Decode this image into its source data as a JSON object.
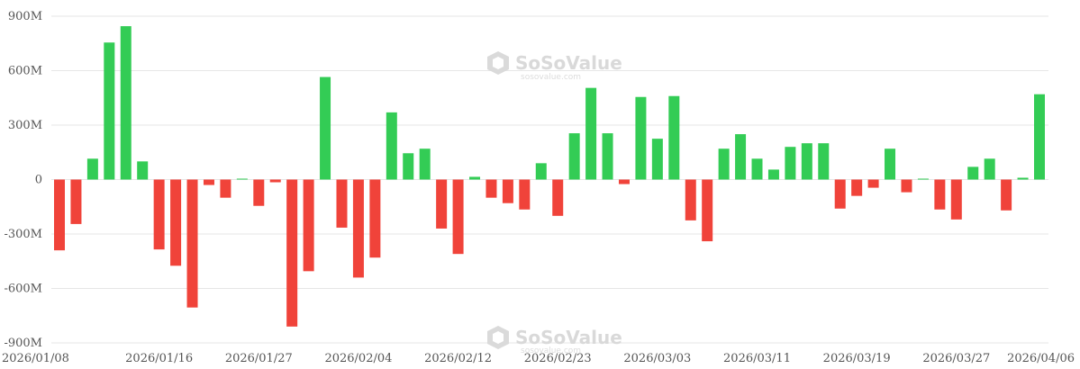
{
  "watermark": {
    "name": "SoSoValue",
    "url": "sosovalue.com"
  },
  "colors": {
    "positive": "#33cc55",
    "negative": "#f0433a"
  },
  "chart_data": {
    "type": "bar",
    "ylim": [
      -900,
      900
    ],
    "yunit": "M",
    "yticks": [
      {
        "value": 900,
        "label": "900M"
      },
      {
        "value": 600,
        "label": "600M"
      },
      {
        "value": 300,
        "label": "300M"
      },
      {
        "value": 0,
        "label": "0"
      },
      {
        "value": -300,
        "label": "-300M"
      },
      {
        "value": -600,
        "label": "-600M"
      },
      {
        "value": -900,
        "label": "-900M"
      }
    ],
    "xticks": [
      "2026/01/08",
      "2026/01/16",
      "2026/01/27",
      "2026/02/04",
      "2026/02/12",
      "2026/02/23",
      "2026/03/03",
      "2026/03/11",
      "2026/03/19",
      "2026/03/27",
      "2026/04/06"
    ],
    "xtick_bar_index": [
      0,
      6,
      12,
      18,
      24,
      30,
      36,
      42,
      48,
      54,
      60
    ],
    "values": [
      -390,
      -245,
      115,
      755,
      845,
      100,
      -385,
      -475,
      -705,
      -30,
      -100,
      5,
      -145,
      -15,
      -810,
      -505,
      565,
      -265,
      -540,
      -430,
      370,
      145,
      170,
      -270,
      -410,
      15,
      -100,
      -130,
      -165,
      90,
      -200,
      255,
      505,
      255,
      -25,
      455,
      225,
      460,
      -225,
      -340,
      170,
      250,
      115,
      55,
      180,
      200,
      200,
      -160,
      -90,
      -45,
      170,
      -70,
      5,
      -165,
      -220,
      70,
      115,
      -170,
      10,
      470
    ]
  }
}
